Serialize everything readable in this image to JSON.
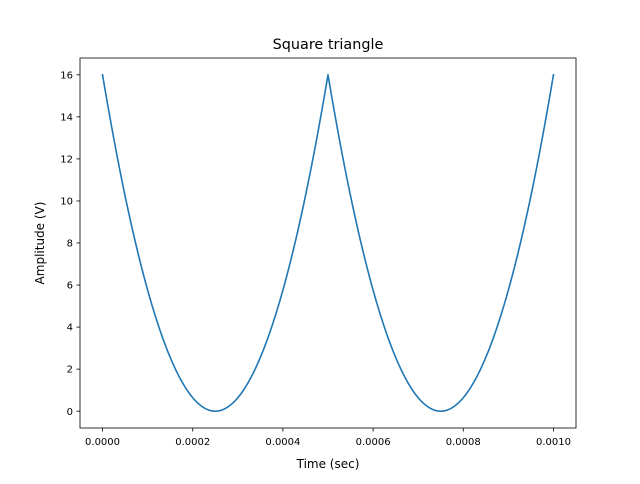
{
  "chart_data": {
    "type": "line",
    "title": "Square triangle",
    "xlabel": "Time (sec)",
    "ylabel": "Amplitude (V)",
    "xlim": [
      -5e-05,
      0.00105
    ],
    "ylim": [
      -0.8,
      16.8
    ],
    "grid": false,
    "x_ticks": [
      0.0,
      0.0002,
      0.0004,
      0.0006,
      0.0008,
      0.001
    ],
    "x_tick_labels": [
      "0.0000",
      "0.0002",
      "0.0004",
      "0.0006",
      "0.0008",
      "0.0010"
    ],
    "y_ticks": [
      0,
      2,
      4,
      6,
      8,
      10,
      12,
      14,
      16
    ],
    "y_tick_labels": [
      "0",
      "2",
      "4",
      "6",
      "8",
      "10",
      "12",
      "14",
      "16"
    ],
    "series": [
      {
        "color": "#1f77b4",
        "x": [
          0.0,
          5e-05,
          0.0001,
          0.00015,
          0.0002,
          0.00025,
          0.0003,
          0.00035,
          0.0004,
          0.00045,
          0.0005,
          0.00055,
          0.0006,
          0.00065,
          0.0007,
          0.00075,
          0.0008,
          0.00085,
          0.0009,
          0.00095,
          0.001
        ],
        "y": [
          16.0,
          10.24,
          5.76,
          2.56,
          0.64,
          0.0,
          0.64,
          2.56,
          5.76,
          10.24,
          16.0,
          10.24,
          5.76,
          2.56,
          0.64,
          0.0,
          0.64,
          2.56,
          5.76,
          10.24,
          16.0
        ]
      }
    ]
  }
}
